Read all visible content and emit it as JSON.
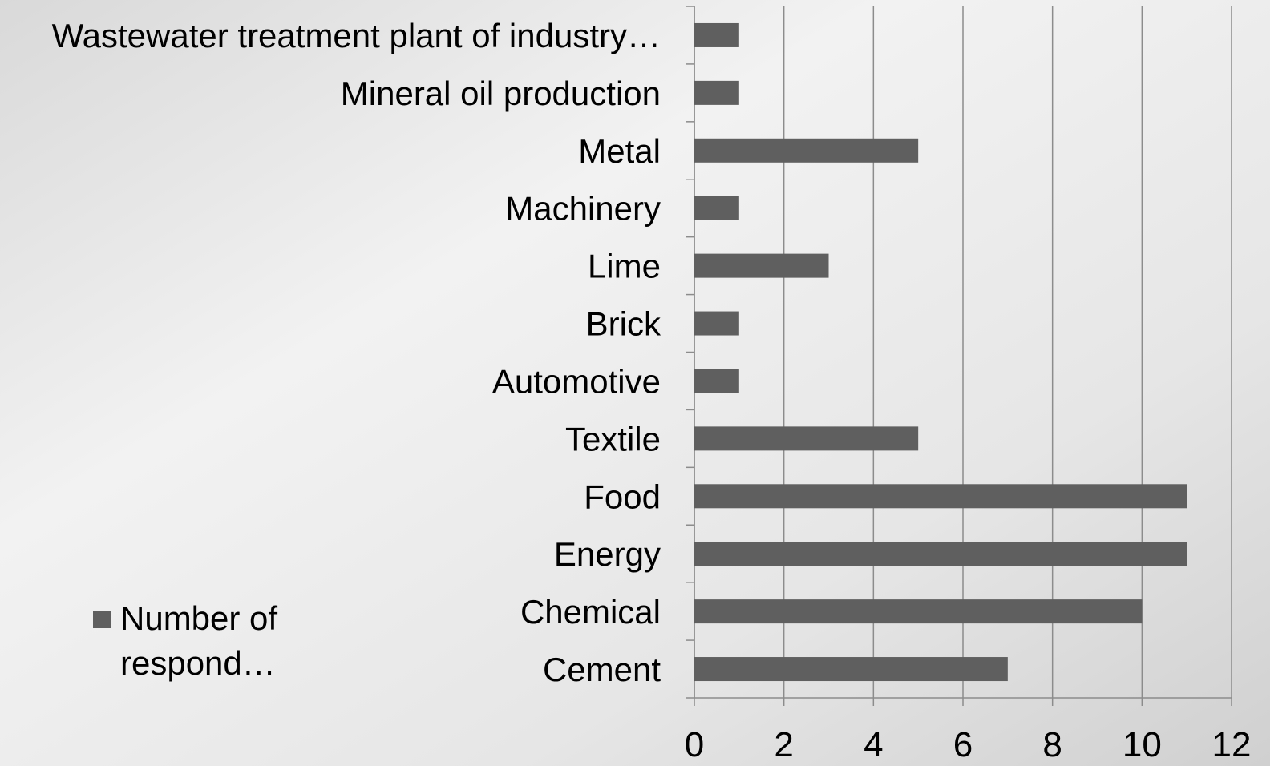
{
  "chart_data": {
    "type": "bar",
    "orientation": "horizontal",
    "categories": [
      "Wastewater treatment plant of industry…",
      "Mineral oil production",
      "Metal",
      "Machinery",
      "Lime",
      "Brick",
      "Automotive",
      "Textile",
      "Food",
      "Energy",
      "Chemical",
      "Cement"
    ],
    "series": [
      {
        "name": "Number of respond…",
        "color": "#5f5f5f",
        "values": [
          1,
          1,
          5,
          1,
          3,
          1,
          1,
          5,
          11,
          11,
          10,
          7
        ]
      }
    ],
    "xlim": [
      0,
      12
    ],
    "xticks": [
      0,
      2,
      4,
      6,
      8,
      10,
      12
    ],
    "grid": true,
    "legend": "left"
  }
}
